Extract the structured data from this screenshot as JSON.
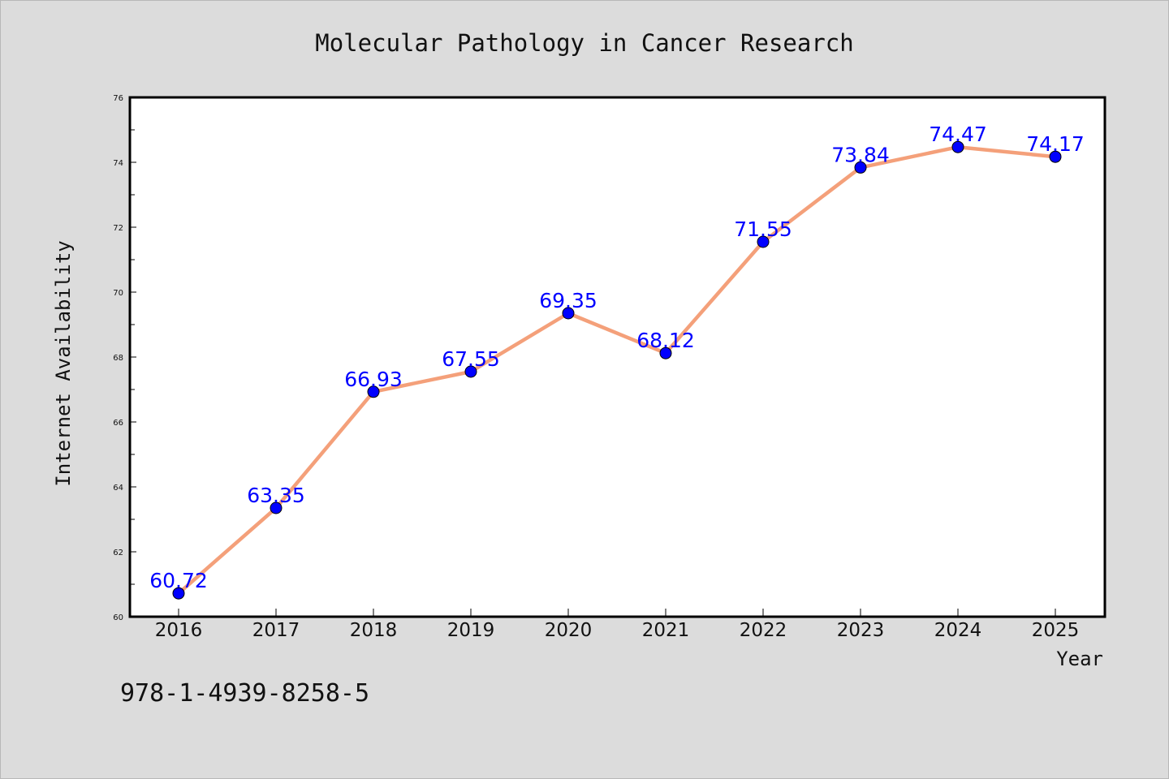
{
  "chart_data": {
    "type": "line",
    "title": "Molecular Pathology in Cancer Research",
    "xlabel": "Year",
    "ylabel": "Internet Availability",
    "categories": [
      "2016",
      "2017",
      "2018",
      "2019",
      "2020",
      "2021",
      "2022",
      "2023",
      "2024",
      "2025"
    ],
    "values": [
      60.72,
      63.35,
      66.93,
      67.55,
      69.35,
      68.12,
      71.55,
      73.84,
      74.47,
      74.17
    ],
    "data_labels": [
      "60.72",
      "63.35",
      "66.93",
      "67.55",
      "69.35",
      "68.12",
      "71.55",
      "73.84",
      "74.47",
      "74.17"
    ],
    "ylim": [
      60,
      76
    ],
    "yticks": [
      "60",
      "62",
      "64",
      "66",
      "68",
      "70",
      "72",
      "74",
      "76"
    ],
    "grid": false,
    "legend": "none",
    "line_color": "#f4a07a",
    "marker_color": "#0000ff",
    "label_color": "#0000ff",
    "background": "#dcdcdc",
    "plot_background": "#ffffff"
  },
  "footer_note": "978-1-4939-8258-5"
}
